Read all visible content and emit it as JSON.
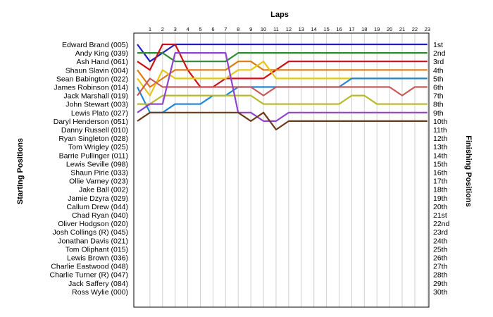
{
  "chart_data": {
    "type": "line",
    "title": "",
    "xlabel": "Laps",
    "ylabel_left": "Starting Positions",
    "ylabel_right": "Finishing Positions",
    "x_ticks": [
      "1",
      "2",
      "3",
      "4",
      "5",
      "6",
      "7",
      "8",
      "9",
      "10",
      "11",
      "12",
      "13",
      "14",
      "15",
      "16",
      "17",
      "18",
      "19",
      "20",
      "21",
      "22",
      "23"
    ],
    "start_labels": [
      "Edward Brand (005)",
      "Andy King (039)",
      "Ash Hand (061)",
      "Shaun Slavin (004)",
      "Sean Babington (022)",
      "James Robinson (014)",
      "Jack Marshall (019)",
      "John Stewart (003)",
      "Lewis Plato (027)",
      "Daryl Henderson (051)",
      "Danny Russell (010)",
      "Ryan Singleton (028)",
      "Tom Wrigley (025)",
      "Barrie Pullinger (011)",
      "Lewis Seville (098)",
      "Shaun Pirie (033)",
      "Ollie Varney (023)",
      "Jake Ball (002)",
      "Jamie Dzyra (029)",
      "Callum Drew (044)",
      "Chad Ryan (040)",
      "Oliver Hodgson (020)",
      "Josh Collings (R) (045)",
      "Jonathan Davis (021)",
      "Tom Oliphant (015)",
      "Lewis Brown (036)",
      "Charlie Eastwood (048)",
      "Charlie Turner (R) (047)",
      "Jack Saffery (084)",
      "Ross Wylie (000)"
    ],
    "finish_labels": [
      "1st",
      "2nd",
      "3rd",
      "4th",
      "5th",
      "6th",
      "7th",
      "8th",
      "9th",
      "10th",
      "11th",
      "12th",
      "13th",
      "14th",
      "15th",
      "16th",
      "17th",
      "18th",
      "19th",
      "20th",
      "21st",
      "22nd",
      "23rd",
      "24th",
      "25th",
      "26th",
      "27th",
      "28th",
      "29th",
      "30th"
    ],
    "grid": true,
    "series": [
      {
        "color": "#1f1fbf",
        "positions": [
          1,
          3,
          2,
          1,
          1,
          1,
          1,
          1,
          1,
          1,
          1,
          1,
          1,
          1,
          1,
          1,
          1,
          1,
          1,
          1,
          1,
          1,
          1,
          1
        ]
      },
      {
        "color": "#2e8b2e",
        "positions": [
          2,
          2,
          2,
          3,
          3,
          3,
          3,
          3,
          2,
          2,
          2,
          2,
          2,
          2,
          2,
          2,
          2,
          2,
          2,
          2,
          2,
          2,
          2,
          2
        ]
      },
      {
        "color": "#cc1111",
        "positions": [
          3,
          4,
          1,
          1,
          4,
          6,
          6,
          5,
          5,
          5,
          5,
          4,
          3,
          3,
          3,
          3,
          3,
          3,
          3,
          3,
          3,
          3,
          3,
          3
        ]
      },
      {
        "color": "#e07b10",
        "positions": [
          4,
          6,
          5,
          4,
          4,
          4,
          4,
          4,
          3,
          3,
          4,
          4,
          4,
          4,
          4,
          4,
          4,
          4,
          4,
          4,
          4,
          4,
          4,
          4
        ]
      },
      {
        "color": "#e6c619",
        "positions": [
          5,
          7,
          4,
          5,
          5,
          5,
          5,
          5,
          4,
          4,
          3,
          5,
          5,
          5,
          5,
          5,
          5,
          5,
          5,
          5,
          5,
          5,
          5,
          5
        ]
      },
      {
        "color": "#1f85d6",
        "positions": [
          6,
          9,
          9,
          8,
          8,
          8,
          7,
          7,
          6,
          6,
          6,
          6,
          6,
          6,
          6,
          6,
          6,
          5,
          5,
          5,
          5,
          5,
          5,
          5
        ]
      },
      {
        "color": "#c85a5a",
        "positions": [
          7,
          5,
          6,
          6,
          6,
          6,
          6,
          6,
          6,
          6,
          7,
          6,
          6,
          6,
          6,
          6,
          6,
          6,
          6,
          6,
          6,
          7,
          6,
          6
        ]
      },
      {
        "color": "#b8b828",
        "positions": [
          8,
          8,
          7,
          7,
          7,
          7,
          7,
          7,
          7,
          7,
          8,
          8,
          8,
          8,
          8,
          8,
          8,
          7,
          7,
          8,
          8,
          8,
          8,
          8
        ]
      },
      {
        "color": "#8f44cf",
        "positions": [
          9,
          8,
          8,
          2,
          2,
          2,
          2,
          2,
          9,
          9,
          10,
          10,
          9,
          9,
          9,
          9,
          9,
          9,
          9,
          9,
          9,
          9,
          9,
          9
        ]
      },
      {
        "color": "#6b3a1a",
        "positions": [
          10,
          9,
          9,
          9,
          9,
          9,
          9,
          9,
          9,
          10,
          9,
          11,
          10,
          10,
          10,
          10,
          10,
          10,
          10,
          10,
          10,
          10,
          10,
          10
        ]
      }
    ]
  }
}
